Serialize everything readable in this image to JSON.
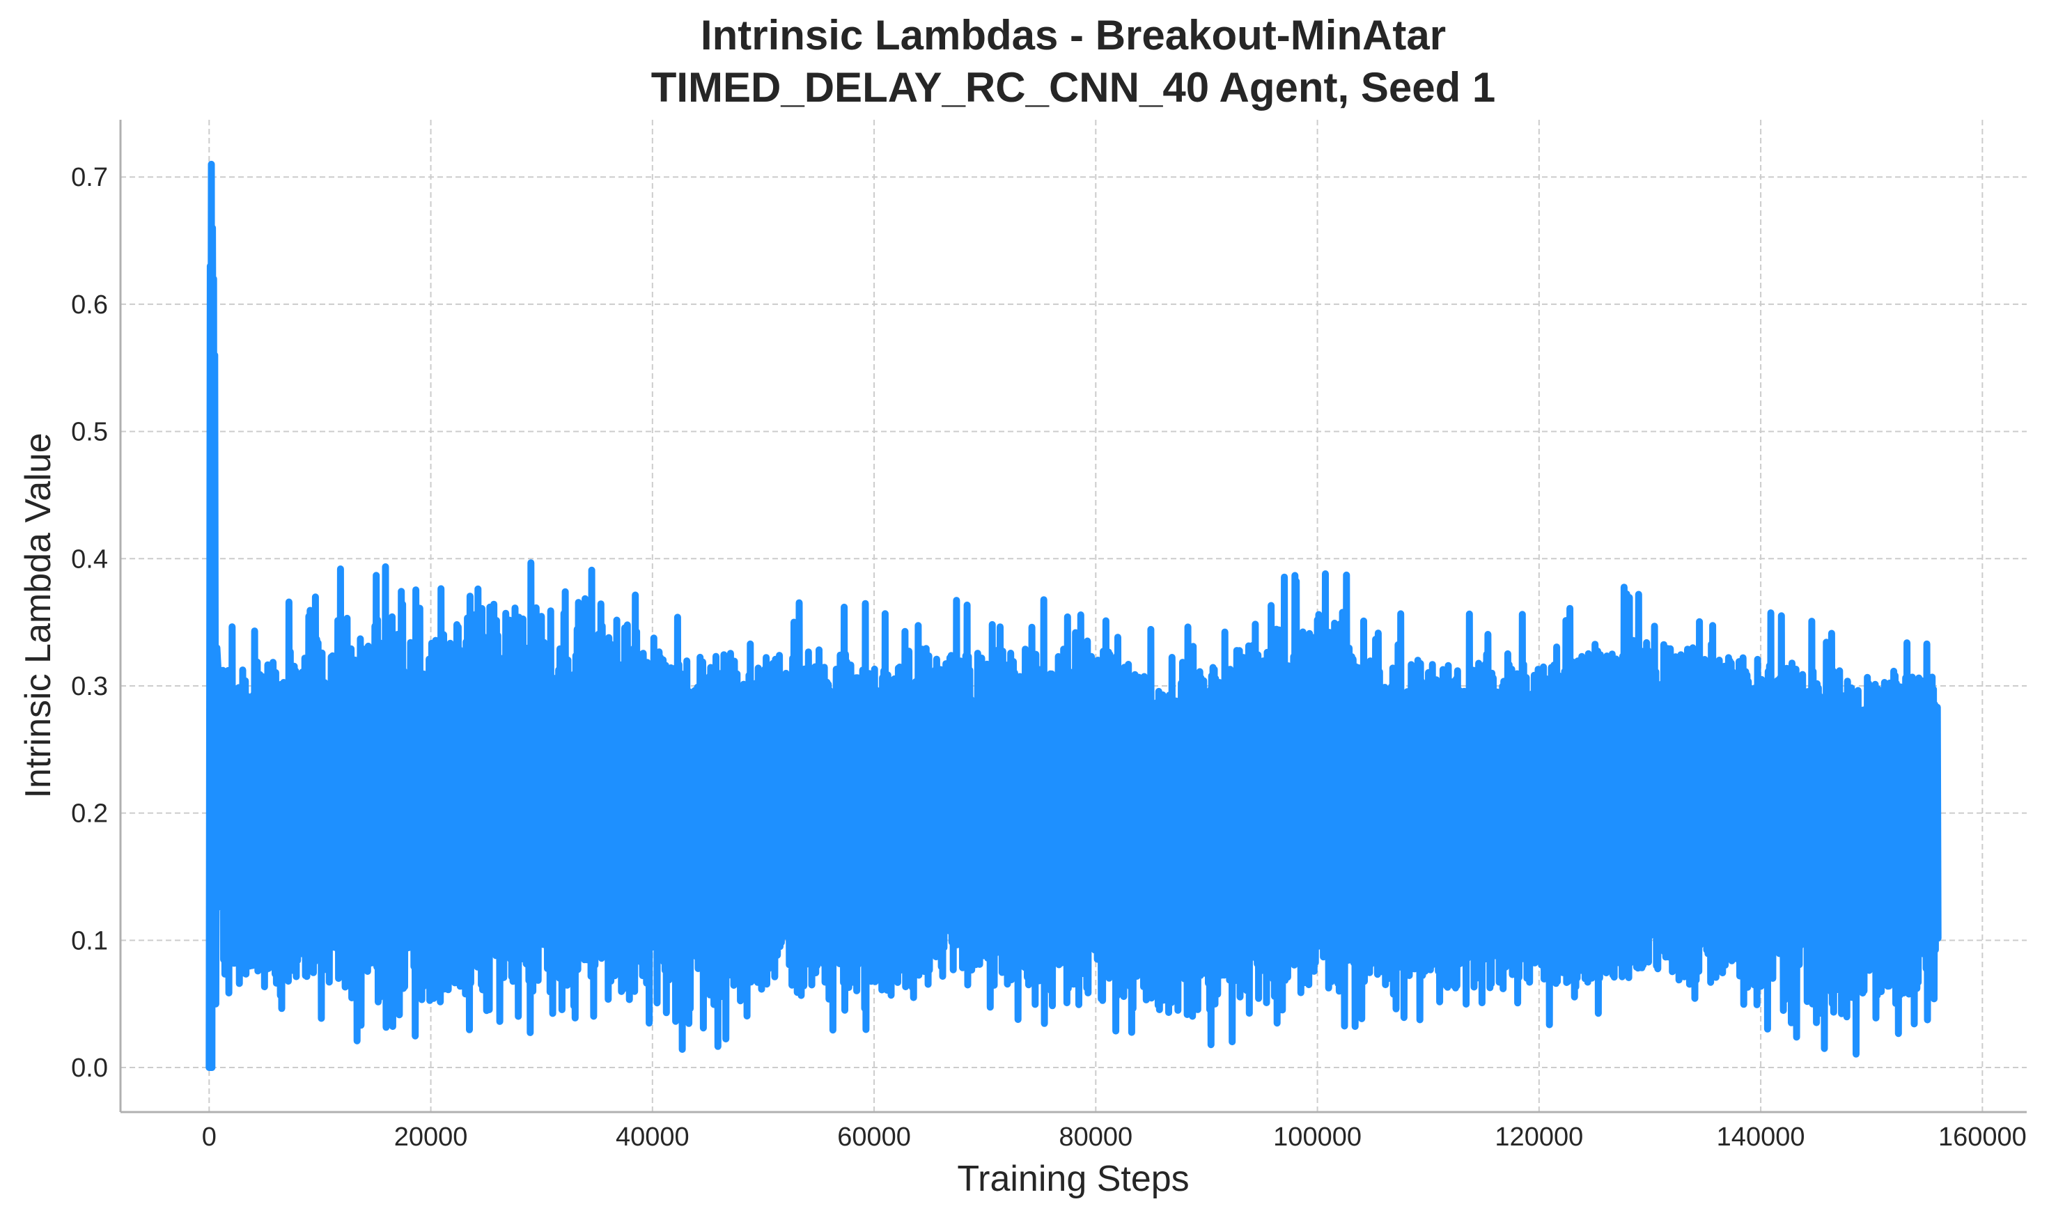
{
  "chart_data": {
    "type": "line",
    "title": "Intrinsic Lambdas - Breakout-MinAtar",
    "subtitle": "TIMED_DELAY_RC_CNN_40 Agent, Seed 1",
    "xlabel": "Training Steps",
    "ylabel": "Intrinsic Lambda Value",
    "xlim": [
      -8000,
      164000
    ],
    "ylim": [
      -0.035,
      0.745
    ],
    "xticks": [
      0,
      20000,
      40000,
      60000,
      80000,
      100000,
      120000,
      140000,
      160000
    ],
    "yticks": [
      0.0,
      0.1,
      0.2,
      0.3,
      0.4,
      0.5,
      0.6,
      0.7
    ],
    "xtick_labels": [
      "0",
      "20000",
      "40000",
      "60000",
      "80000",
      "100000",
      "120000",
      "140000",
      "160000"
    ],
    "ytick_labels": [
      "0.0",
      "0.1",
      "0.2",
      "0.3",
      "0.4",
      "0.5",
      "0.6",
      "0.7"
    ],
    "grid": true,
    "line_color": "#1e90ff",
    "series": [
      {
        "name": "",
        "x_range": [
          0,
          156000
        ],
        "initial_segment": {
          "x": [
            0,
            100,
            150,
            200,
            250,
            300,
            350,
            400,
            450,
            500,
            600,
            700
          ],
          "y": [
            0.0,
            0.63,
            0.45,
            0.71,
            0.0,
            0.66,
            0.5,
            0.62,
            0.1,
            0.56,
            0.05,
            0.33
          ]
        },
        "envelope_x": [
          1000,
          2000,
          5000,
          8700,
          12700,
          20000,
          24000,
          38000,
          42400,
          49000,
          60000,
          67500,
          80500,
          86700,
          99600,
          110000,
          119800,
          127800,
          140000,
          149000,
          156000
        ],
        "upper_y": [
          0.35,
          0.36,
          0.36,
          0.37,
          0.4,
          0.39,
          0.41,
          0.39,
          0.36,
          0.37,
          0.37,
          0.37,
          0.37,
          0.34,
          0.4,
          0.36,
          0.36,
          0.38,
          0.36,
          0.35,
          0.35
        ],
        "lower_y": [
          0.05,
          0.03,
          0.03,
          0.04,
          0.02,
          0.02,
          0.02,
          0.04,
          0.0,
          0.03,
          0.02,
          0.04,
          0.02,
          0.01,
          0.03,
          0.03,
          0.03,
          0.04,
          0.03,
          0.0,
          0.03
        ],
        "typical_band": [
          0.08,
          0.3
        ]
      }
    ]
  }
}
